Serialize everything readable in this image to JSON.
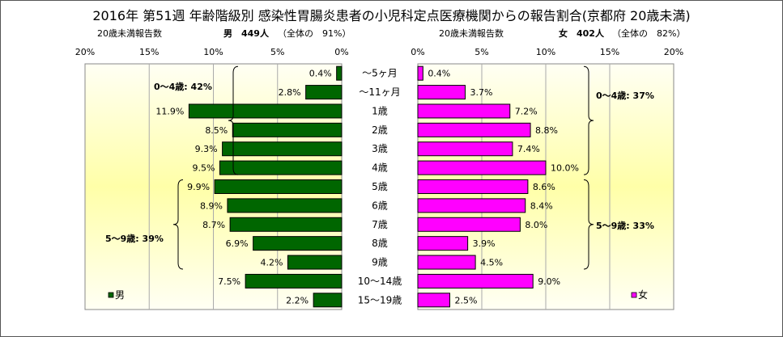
{
  "title": "2016年 第51週 年齢階級別 感染性胃腸炎患者の小児科定点医療機関からの報告割合(京都府 20歳未満)",
  "left_header": {
    "label": "20歳未満報告数",
    "sex": "男",
    "count": "449人",
    "share": "（全体の　91%）"
  },
  "right_header": {
    "label": "20歳未満報告数",
    "sex": "女",
    "count": "402人",
    "share": "（全体の　82%）"
  },
  "colors": {
    "male": "#006600",
    "female": "#ff00ff",
    "grad_edge": "#ffffa8",
    "grad_mid": "#fffff4"
  },
  "chart_data": {
    "type": "bar",
    "categories": [
      "～5ヶ月",
      "～11ヶ月",
      "1歳",
      "2歳",
      "3歳",
      "4歳",
      "5歳",
      "6歳",
      "7歳",
      "8歳",
      "9歳",
      "10～14歳",
      "15～19歳"
    ],
    "series": [
      {
        "name": "男",
        "values": [
          0.4,
          2.8,
          11.9,
          8.5,
          9.3,
          9.5,
          9.9,
          8.9,
          8.7,
          6.9,
          4.2,
          7.5,
          2.2
        ]
      },
      {
        "name": "女",
        "values": [
          0.4,
          3.7,
          7.2,
          8.8,
          7.4,
          10.0,
          8.6,
          8.4,
          8.0,
          3.9,
          4.5,
          9.0,
          2.5
        ]
      }
    ],
    "value_labels_male": [
      "0.4%",
      "2.8%",
      "11.9%",
      "8.5%",
      "9.3%",
      "9.5%",
      "9.9%",
      "8.9%",
      "8.7%",
      "6.9%",
      "4.2%",
      "7.5%",
      "2.2%"
    ],
    "value_labels_female": [
      "0.4%",
      "3.7%",
      "7.2%",
      "8.8%",
      "7.4%",
      "10.0%",
      "8.6%",
      "8.4%",
      "8.0%",
      "3.9%",
      "4.5%",
      "9.0%",
      "2.5%"
    ],
    "left_axis_ticks": [
      "20%",
      "15%",
      "10%",
      "5%",
      "0%"
    ],
    "right_axis_ticks": [
      "0%",
      "5%",
      "10%",
      "15%",
      "20%"
    ],
    "xlim": [
      0,
      20
    ],
    "group_labels_male": [
      "0～4歳: 42%",
      "5～9歳: 39%"
    ],
    "group_labels_female": [
      "0～4歳: 37%",
      "5～9歳: 33%"
    ],
    "legend": [
      "男",
      "女"
    ],
    "legend_position": "bottom-left / bottom-right",
    "grid": true
  }
}
